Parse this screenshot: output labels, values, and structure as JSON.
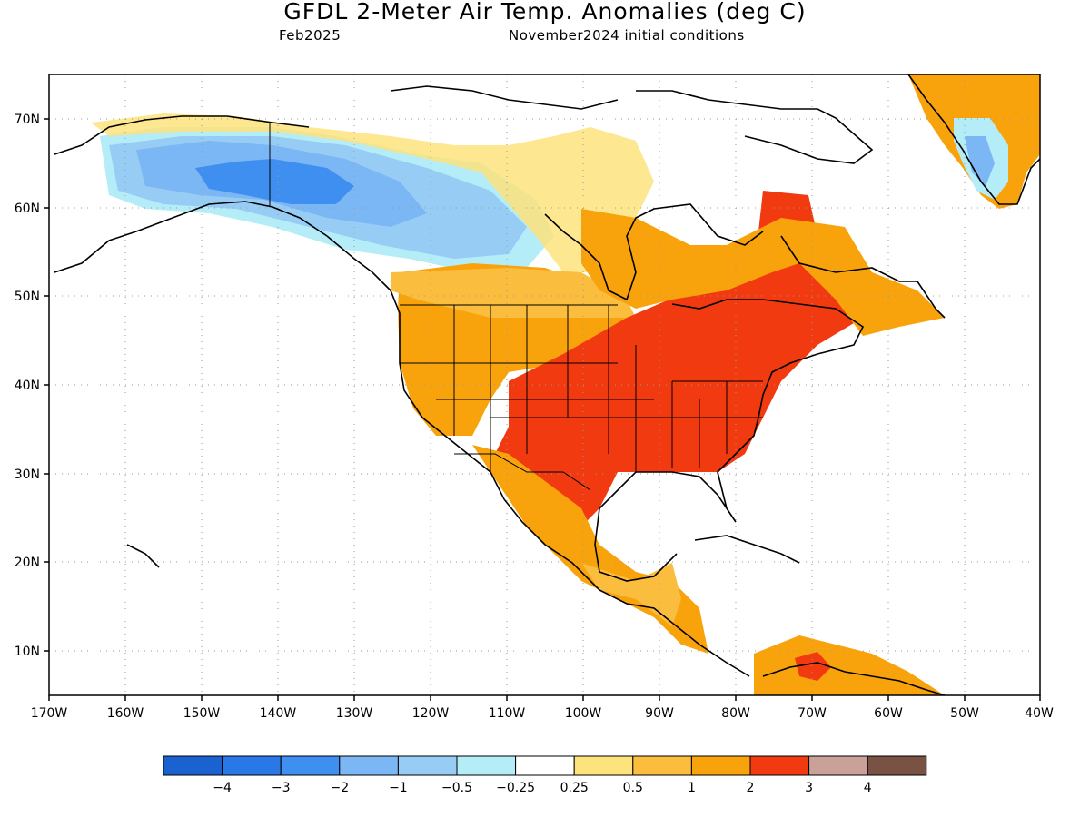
{
  "title": "GFDL 2-Meter Air Temp. Anomalies (deg C)",
  "valid_month": "Feb2025",
  "init_conditions": "November2024 initial conditions",
  "lat_labels": [
    "70N",
    "60N",
    "50N",
    "40N",
    "30N",
    "20N",
    "10N"
  ],
  "lon_labels": [
    "170W",
    "160W",
    "150W",
    "140W",
    "130W",
    "120W",
    "110W",
    "100W",
    "90W",
    "80W",
    "70W",
    "60W",
    "50W",
    "40W"
  ],
  "colorbar": {
    "colors": [
      "#1a62d0",
      "#2a78e8",
      "#3f8ff0",
      "#7bb6f5",
      "#97cdf5",
      "#b4ecf8",
      "#ffffff",
      "#fde37c",
      "#fbbd3e",
      "#f9a30c",
      "#f23a10",
      "#c9a198",
      "#7a5244"
    ],
    "labels": [
      "-4",
      "-3",
      "-2",
      "-1",
      "-0.5",
      "-0.25",
      "0.25",
      "0.5",
      "1",
      "2",
      "3",
      "4"
    ]
  },
  "colors": {
    "land_outline": "#000000",
    "grid": "#9a9a9a"
  }
}
